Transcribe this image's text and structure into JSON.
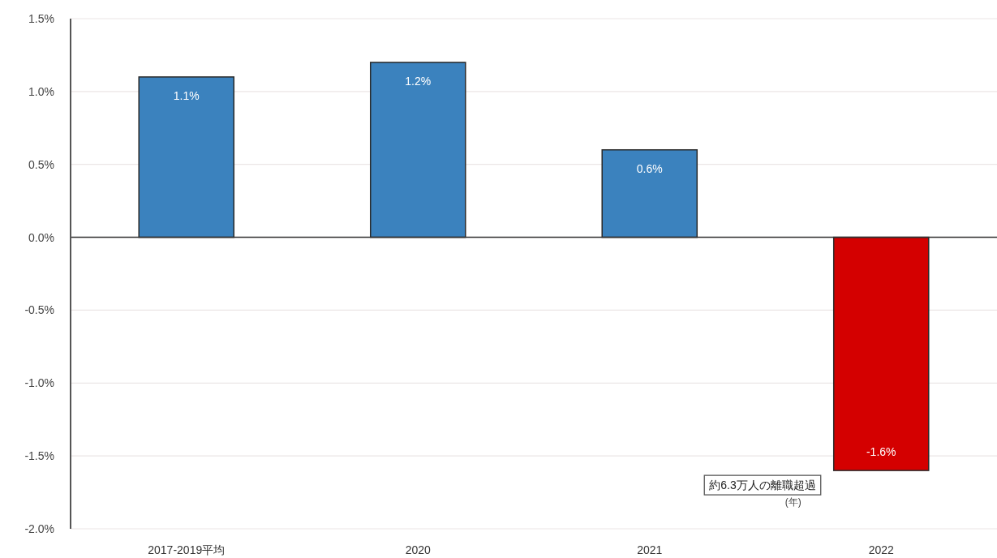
{
  "chart_data": {
    "type": "bar",
    "categories": [
      "2017-2019平均",
      "2020",
      "2021",
      "2022"
    ],
    "values": [
      1.1,
      1.2,
      0.6,
      -1.6
    ],
    "colors": [
      "#3b82be",
      "#3b82be",
      "#3b82be",
      "#d40000"
    ],
    "value_labels": [
      "1.1%",
      "1.2%",
      "0.6%",
      "-1.6%"
    ],
    "ylim": [
      -2.0,
      1.5
    ],
    "yticks": [
      {
        "value": -2.0,
        "label": "-2.0%"
      },
      {
        "value": -1.5,
        "label": "-1.5%"
      },
      {
        "value": -1.0,
        "label": "-1.0%"
      },
      {
        "value": -0.5,
        "label": "-0.5%"
      },
      {
        "value": 0.0,
        "label": "0.0%"
      },
      {
        "value": 0.5,
        "label": "0.5%"
      },
      {
        "value": 1.0,
        "label": "1.0%"
      },
      {
        "value": 1.5,
        "label": "1.5%"
      }
    ],
    "xlabel": "(年)",
    "annotations": [
      "約6.3万人の離職超過"
    ],
    "grid": "y"
  }
}
